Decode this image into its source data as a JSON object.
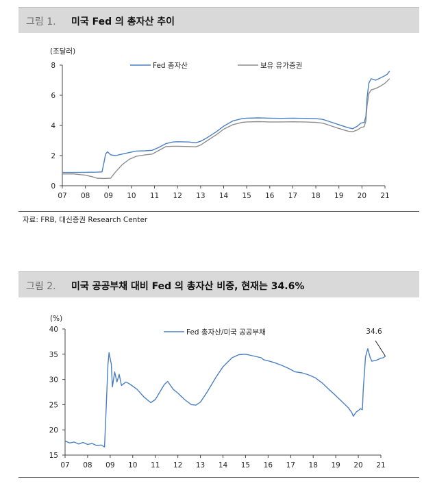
{
  "figures": [
    {
      "number": "그림 1.",
      "title": "미국 Fed 의 총자산 추이",
      "source": "자료: FRB, 대신증권 Research Center"
    },
    {
      "number": "그림 2.",
      "title": "미국 공공부채 대비 Fed 의 총자산 비중, 현재는 34.6%"
    }
  ],
  "chart_data": [
    {
      "type": "line",
      "unit_label": "(조달러)",
      "x_ticks": [
        "07",
        "08",
        "09",
        "10",
        "11",
        "12",
        "13",
        "14",
        "15",
        "16",
        "17",
        "18",
        "19",
        "20",
        "21"
      ],
      "xlim": [
        2007,
        2021
      ],
      "ylim": [
        0,
        8
      ],
      "y_ticks": [
        "0",
        "2",
        "4",
        "6",
        "8"
      ],
      "legend_position": "top",
      "series": [
        {
          "name": "Fed 총자산",
          "color": "#4a7fc1",
          "points": [
            [
              2007.0,
              0.88
            ],
            [
              2007.5,
              0.88
            ],
            [
              2008.0,
              0.89
            ],
            [
              2008.5,
              0.9
            ],
            [
              2008.72,
              0.92
            ],
            [
              2008.8,
              1.5
            ],
            [
              2008.88,
              2.1
            ],
            [
              2008.96,
              2.25
            ],
            [
              2009.1,
              2.05
            ],
            [
              2009.3,
              2.0
            ],
            [
              2009.6,
              2.1
            ],
            [
              2009.9,
              2.2
            ],
            [
              2010.2,
              2.3
            ],
            [
              2010.6,
              2.32
            ],
            [
              2010.9,
              2.35
            ],
            [
              2011.2,
              2.55
            ],
            [
              2011.5,
              2.8
            ],
            [
              2011.8,
              2.9
            ],
            [
              2012.0,
              2.92
            ],
            [
              2012.5,
              2.9
            ],
            [
              2012.8,
              2.85
            ],
            [
              2013.0,
              2.95
            ],
            [
              2013.3,
              3.2
            ],
            [
              2013.7,
              3.6
            ],
            [
              2014.0,
              3.95
            ],
            [
              2014.4,
              4.3
            ],
            [
              2014.8,
              4.45
            ],
            [
              2015.0,
              4.48
            ],
            [
              2015.5,
              4.5
            ],
            [
              2016.0,
              4.48
            ],
            [
              2016.5,
              4.47
            ],
            [
              2017.0,
              4.48
            ],
            [
              2017.5,
              4.47
            ],
            [
              2018.0,
              4.45
            ],
            [
              2018.3,
              4.4
            ],
            [
              2018.6,
              4.25
            ],
            [
              2019.0,
              4.05
            ],
            [
              2019.4,
              3.85
            ],
            [
              2019.6,
              3.78
            ],
            [
              2019.8,
              3.95
            ],
            [
              2019.95,
              4.15
            ],
            [
              2020.1,
              4.2
            ],
            [
              2020.17,
              4.6
            ],
            [
              2020.22,
              5.8
            ],
            [
              2020.3,
              6.8
            ],
            [
              2020.4,
              7.1
            ],
            [
              2020.6,
              7.0
            ],
            [
              2020.8,
              7.15
            ],
            [
              2021.0,
              7.3
            ],
            [
              2021.1,
              7.4
            ],
            [
              2021.2,
              7.6
            ]
          ]
        },
        {
          "name": "보유 유가증권",
          "color": "#8c8c8c",
          "points": [
            [
              2007.0,
              0.78
            ],
            [
              2007.5,
              0.78
            ],
            [
              2008.0,
              0.7
            ],
            [
              2008.3,
              0.6
            ],
            [
              2008.5,
              0.5
            ],
            [
              2008.8,
              0.48
            ],
            [
              2009.1,
              0.5
            ],
            [
              2009.3,
              0.9
            ],
            [
              2009.6,
              1.4
            ],
            [
              2009.9,
              1.75
            ],
            [
              2010.2,
              1.95
            ],
            [
              2010.6,
              2.05
            ],
            [
              2010.9,
              2.1
            ],
            [
              2011.2,
              2.35
            ],
            [
              2011.5,
              2.6
            ],
            [
              2011.8,
              2.62
            ],
            [
              2012.0,
              2.62
            ],
            [
              2012.5,
              2.6
            ],
            [
              2012.8,
              2.58
            ],
            [
              2013.0,
              2.7
            ],
            [
              2013.3,
              3.0
            ],
            [
              2013.7,
              3.4
            ],
            [
              2014.0,
              3.75
            ],
            [
              2014.4,
              4.05
            ],
            [
              2014.8,
              4.2
            ],
            [
              2015.0,
              4.23
            ],
            [
              2015.5,
              4.25
            ],
            [
              2016.0,
              4.23
            ],
            [
              2016.5,
              4.23
            ],
            [
              2017.0,
              4.24
            ],
            [
              2017.5,
              4.23
            ],
            [
              2018.0,
              4.2
            ],
            [
              2018.3,
              4.15
            ],
            [
              2018.6,
              4.0
            ],
            [
              2019.0,
              3.8
            ],
            [
              2019.4,
              3.62
            ],
            [
              2019.6,
              3.58
            ],
            [
              2019.8,
              3.7
            ],
            [
              2019.95,
              3.85
            ],
            [
              2020.1,
              3.92
            ],
            [
              2020.17,
              4.3
            ],
            [
              2020.22,
              5.3
            ],
            [
              2020.3,
              6.1
            ],
            [
              2020.4,
              6.35
            ],
            [
              2020.6,
              6.45
            ],
            [
              2020.8,
              6.6
            ],
            [
              2021.0,
              6.8
            ],
            [
              2021.1,
              6.95
            ],
            [
              2021.2,
              7.1
            ]
          ]
        }
      ]
    },
    {
      "type": "line",
      "unit_label": "(%)",
      "x_ticks": [
        "07",
        "08",
        "09",
        "10",
        "11",
        "12",
        "13",
        "14",
        "15",
        "16",
        "17",
        "18",
        "19",
        "20",
        "21"
      ],
      "xlim": [
        2007,
        2021
      ],
      "ylim": [
        15,
        40
      ],
      "y_ticks": [
        "15",
        "20",
        "25",
        "30",
        "35",
        "40"
      ],
      "legend_position": "top",
      "annotation": {
        "text": "34.6",
        "x": 2021.2,
        "y": 34.6
      },
      "series": [
        {
          "name": "Fed 총자산/미국 공공부채",
          "color": "#4a7fc1",
          "points": [
            [
              2007.0,
              17.8
            ],
            [
              2007.2,
              17.4
            ],
            [
              2007.4,
              17.6
            ],
            [
              2007.6,
              17.2
            ],
            [
              2007.8,
              17.5
            ],
            [
              2008.0,
              17.1
            ],
            [
              2008.2,
              17.3
            ],
            [
              2008.4,
              16.9
            ],
            [
              2008.6,
              17.0
            ],
            [
              2008.75,
              16.6
            ],
            [
              2008.82,
              24.0
            ],
            [
              2008.9,
              33.0
            ],
            [
              2008.95,
              35.3
            ],
            [
              2009.05,
              33.0
            ],
            [
              2009.1,
              28.5
            ],
            [
              2009.2,
              31.5
            ],
            [
              2009.3,
              29.5
            ],
            [
              2009.4,
              31.0
            ],
            [
              2009.5,
              28.8
            ],
            [
              2009.7,
              29.5
            ],
            [
              2009.9,
              29.0
            ],
            [
              2010.2,
              28.0
            ],
            [
              2010.5,
              26.5
            ],
            [
              2010.8,
              25.4
            ],
            [
              2011.0,
              26.0
            ],
            [
              2011.2,
              27.5
            ],
            [
              2011.4,
              29.0
            ],
            [
              2011.55,
              29.6
            ],
            [
              2011.8,
              28.0
            ],
            [
              2012.0,
              27.3
            ],
            [
              2012.3,
              26.0
            ],
            [
              2012.6,
              25.0
            ],
            [
              2012.8,
              24.9
            ],
            [
              2013.0,
              25.5
            ],
            [
              2013.3,
              27.5
            ],
            [
              2013.7,
              30.5
            ],
            [
              2014.0,
              32.5
            ],
            [
              2014.4,
              34.3
            ],
            [
              2014.7,
              34.9
            ],
            [
              2015.0,
              35.0
            ],
            [
              2015.3,
              34.7
            ],
            [
              2015.5,
              34.5
            ],
            [
              2015.7,
              34.3
            ],
            [
              2015.8,
              33.9
            ],
            [
              2016.0,
              33.7
            ],
            [
              2016.3,
              33.3
            ],
            [
              2016.6,
              32.8
            ],
            [
              2016.9,
              32.2
            ],
            [
              2017.2,
              31.5
            ],
            [
              2017.5,
              31.3
            ],
            [
              2017.8,
              30.9
            ],
            [
              2018.1,
              30.3
            ],
            [
              2018.4,
              29.3
            ],
            [
              2018.7,
              28.0
            ],
            [
              2019.0,
              26.8
            ],
            [
              2019.3,
              25.5
            ],
            [
              2019.55,
              24.4
            ],
            [
              2019.7,
              23.5
            ],
            [
              2019.78,
              22.7
            ],
            [
              2019.9,
              23.5
            ],
            [
              2020.1,
              24.2
            ],
            [
              2020.18,
              24.0
            ],
            [
              2020.22,
              28.0
            ],
            [
              2020.32,
              34.5
            ],
            [
              2020.42,
              36.1
            ],
            [
              2020.52,
              34.4
            ],
            [
              2020.6,
              33.6
            ],
            [
              2020.8,
              33.8
            ],
            [
              2021.0,
              34.2
            ],
            [
              2021.1,
              34.3
            ],
            [
              2021.2,
              34.6
            ]
          ]
        }
      ]
    }
  ]
}
